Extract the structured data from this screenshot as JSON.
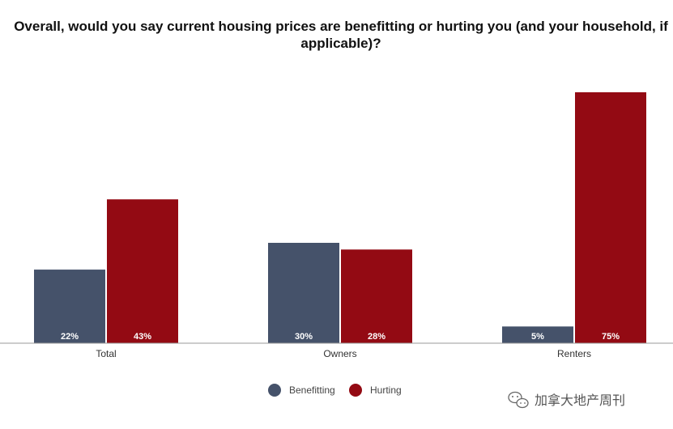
{
  "chart_data": {
    "type": "bar",
    "title_lines": [
      "Overall, would you say current housing prices are benefitting or hurting you (and your household, if",
      "applicable)?"
    ],
    "categories": [
      "Total",
      "Owners",
      "Renters"
    ],
    "series": [
      {
        "name": "Benefitting",
        "values": [
          22,
          30,
          5
        ],
        "color": "#45526a"
      },
      {
        "name": "Hurting",
        "values": [
          43,
          28,
          75
        ],
        "color": "#930a13"
      }
    ],
    "value_suffix": "%",
    "ylim": [
      0,
      75
    ],
    "xlabel": "",
    "ylabel": "",
    "grid": false,
    "legend_position": "bottom-center"
  },
  "watermark": {
    "icon": "wechat-icon",
    "text": "加拿大地产周刊"
  }
}
